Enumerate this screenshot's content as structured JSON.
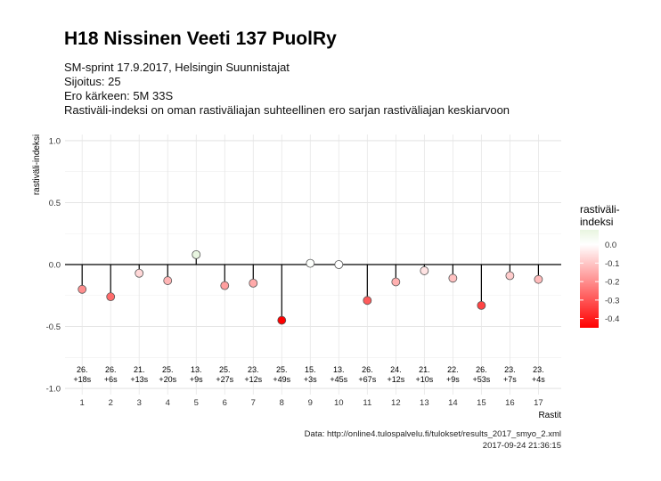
{
  "title": "H18 Nissinen Veeti 137 PuolRy",
  "subtitle_lines": [
    "SM-sprint 17.9.2017, Helsingin Suunnistajat",
    "Sijoitus: 25",
    "Ero kärkeen: 5M 33S",
    "Rastiväli-indeksi on oman rastiväliajan suhteellinen ero sarjan rastiväliajan keskiarvoon"
  ],
  "caption_lines": [
    "Data: http://online4.tulospalvelu.fi/tulokset/results_2017_smyo_2.xml",
    "2017-09-24 21:36:15"
  ],
  "legend": {
    "title": "rastiväli-\nindeksi",
    "ticks": [
      "0.0",
      "-0.1",
      "-0.2",
      "-0.3",
      "-0.4"
    ],
    "tick_values": [
      0.0,
      -0.1,
      -0.2,
      -0.3,
      -0.4
    ],
    "range": [
      -0.45,
      0.08
    ],
    "colors": {
      "high": "#e8f5e0",
      "mid": "#ffffff",
      "low": "#ff0000"
    }
  },
  "chart_data": {
    "type": "scatter",
    "xlabel": "Rastit",
    "ylabel": "rastiväli-indeksi",
    "x": [
      1,
      2,
      3,
      4,
      5,
      6,
      7,
      8,
      9,
      10,
      11,
      12,
      13,
      14,
      15,
      16,
      17
    ],
    "y": [
      -0.2,
      -0.26,
      -0.07,
      -0.13,
      0.08,
      -0.17,
      -0.15,
      -0.45,
      0.01,
      0.0,
      -0.29,
      -0.14,
      -0.05,
      -0.11,
      -0.33,
      -0.09,
      -0.12
    ],
    "xticks": [
      "1",
      "2",
      "3",
      "4",
      "5",
      "6",
      "7",
      "8",
      "9",
      "10",
      "11",
      "12",
      "13",
      "14",
      "15",
      "16",
      "17"
    ],
    "yticks": [
      1.0,
      0.5,
      0.0,
      -0.5,
      -1.0
    ],
    "ytick_labels": [
      "1.0",
      "0.5",
      "0.0",
      "-0.5",
      "-1.0"
    ],
    "ylim": [
      -1.05,
      1.05
    ],
    "xlim": [
      0.4,
      17.8
    ],
    "labels_rank": [
      "26.",
      "26.",
      "21.",
      "25.",
      "13.",
      "25.",
      "23.",
      "25.",
      "15.",
      "13.",
      "26.",
      "24.",
      "21.",
      "22.",
      "26.",
      "23.",
      "23."
    ],
    "labels_diff": [
      "+18s",
      "+6s",
      "+13s",
      "+20s",
      "+9s",
      "+27s",
      "+12s",
      "+49s",
      "+3s",
      "+45s",
      "+67s",
      "+12s",
      "+10s",
      "+9s",
      "+53s",
      "+7s",
      "+4s"
    ],
    "label_y": -0.9,
    "grid": true,
    "legend_position": "right"
  }
}
